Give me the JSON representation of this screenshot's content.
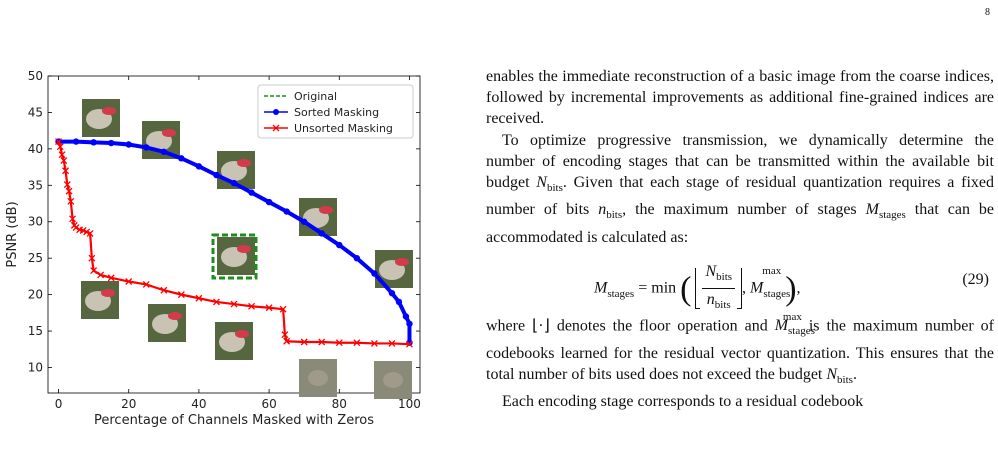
{
  "page": {
    "number": "8"
  },
  "figure": {
    "chart_data": {
      "type": "line",
      "xlabel": "Percentage of Channels Masked with Zeros",
      "ylabel": "PSNR (dB)",
      "xlim": [
        -3,
        103
      ],
      "ylim": [
        6.5,
        50
      ],
      "xticks": [
        0,
        20,
        40,
        60,
        80,
        100
      ],
      "yticks": [
        10,
        15,
        20,
        25,
        30,
        35,
        40,
        45,
        50
      ],
      "legend_position": "top-right",
      "series": [
        {
          "name": "Original",
          "style": "dashed",
          "color": "#1a8f1a",
          "x": [],
          "y": []
        },
        {
          "name": "Sorted Masking",
          "marker": "circle",
          "color": "#0000ff",
          "x": [
            0,
            5,
            10,
            15,
            20,
            25,
            30,
            35,
            40,
            45,
            50,
            55,
            60,
            65,
            70,
            75,
            80,
            85,
            90,
            95,
            97,
            99,
            100,
            100
          ],
          "y": [
            41.0,
            41.0,
            40.9,
            40.8,
            40.6,
            40.2,
            39.6,
            38.7,
            37.6,
            36.4,
            35.3,
            34.0,
            32.7,
            31.4,
            30.0,
            28.4,
            26.8,
            25.0,
            22.9,
            20.2,
            19.0,
            17.0,
            16.0,
            13.4
          ]
        },
        {
          "name": "Unsorted Masking",
          "marker": "x",
          "color": "#ff0000",
          "x": [
            0,
            0.5,
            1,
            1.5,
            2,
            2.5,
            3,
            3.5,
            4,
            4.5,
            5,
            6,
            7,
            8,
            9,
            9.5,
            10,
            12,
            15,
            20,
            25,
            30,
            35,
            40,
            45,
            50,
            55,
            60,
            64,
            64.5,
            65,
            70,
            75,
            80,
            85,
            90,
            95,
            100
          ],
          "y": [
            41.0,
            40.3,
            39.2,
            38.4,
            37.0,
            35.1,
            34.2,
            32.8,
            30.4,
            29.5,
            29.2,
            28.9,
            28.8,
            28.6,
            28.4,
            25.0,
            23.3,
            22.7,
            22.3,
            21.8,
            21.4,
            20.6,
            20.0,
            19.5,
            19.0,
            18.7,
            18.4,
            18.2,
            18.0,
            14.5,
            13.6,
            13.5,
            13.5,
            13.4,
            13.4,
            13.3,
            13.3,
            13.2
          ]
        }
      ]
    }
  },
  "text": {
    "p1": "enables the immediate reconstruction of a basic image from the coarse indices, followed by incremental improvements as additional fine-grained indices are received.",
    "p2_a": "To optimize progressive transmission, we dynamically determine the number of encoding stages that can be transmitted within the available bit budget ",
    "p2_b": ". Given that each stage of residual quantization requires a fixed number of bits ",
    "p2_c": ", the maximum number of stages ",
    "p2_d": " that can be accommodated is calculated as:",
    "eq_lhs": "M",
    "eq_lhs_sub": "stages",
    "eq_min": "= min",
    "eq_num": "N",
    "eq_num_sub": "bits",
    "eq_den": "n",
    "eq_den_sub": "bits",
    "eq_rhs": "M",
    "eq_rhs_sub": "stages",
    "eq_rhs_sup": "max",
    "eq_number": "(29)",
    "p3_a": "where ⌊·⌋ denotes the floor operation and ",
    "p3_b": " is the maximum number of codebooks learned for the residual vector quantization. This ensures that the total number of bits used does not exceed the budget ",
    "p3_c": ".",
    "p4": "Each encoding stage corresponds to a residual codebook",
    "sym_N": "N",
    "sym_n": "n",
    "sym_M": "M",
    "sub_bits": "bits",
    "sub_stages": "stages",
    "sup_max": "max"
  }
}
